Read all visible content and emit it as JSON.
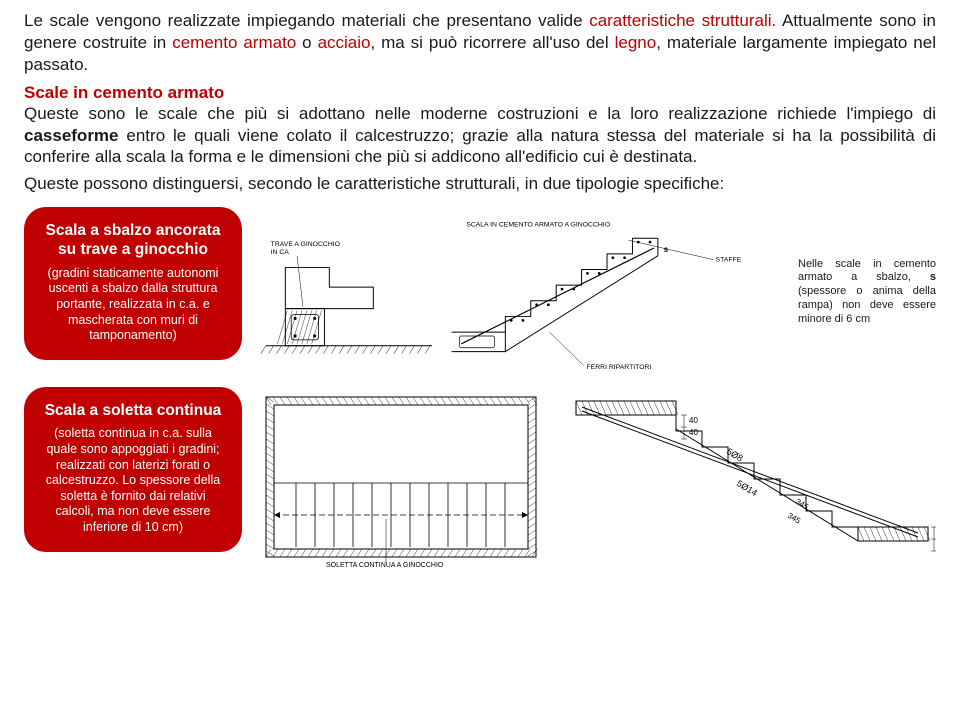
{
  "accent": "#c00000",
  "intro": [
    {
      "type": "plain",
      "text": "Le scale vengono realizzate impiegando materiali che presentano valide "
    },
    {
      "type": "emph",
      "text": "caratteristiche strutturali."
    },
    {
      "type": "plain",
      "text": " Attualmente sono in genere costruite in "
    },
    {
      "type": "emph",
      "text": "cemento armato"
    },
    {
      "type": "plain",
      "text": " o "
    },
    {
      "type": "emph",
      "text": "acciaio"
    },
    {
      "type": "plain",
      "text": ", ma si può ricorrere all'uso del "
    },
    {
      "type": "emph",
      "text": "legno"
    },
    {
      "type": "plain",
      "text": ", materiale largamente impiegato nel passato."
    }
  ],
  "section_heading": "Scale in cemento armato",
  "section_body": [
    {
      "type": "plain",
      "text": "Queste sono le scale che più si adottano nelle moderne costruzioni e la loro realizzazione richiede l'impiego di "
    },
    {
      "type": "bold",
      "text": "casseforme"
    },
    {
      "type": "plain",
      "text": " entro le quali viene colato il calcestruzzo; grazie alla natura stessa del materiale si ha la possibilità di conferire alla scala la forma e le dimensioni che più si addicono all'edificio cui è destinata."
    }
  ],
  "section_body2": "Queste possono distinguersi, secondo le caratteristiche strutturali, in due tipologie specifiche:",
  "card1": {
    "title": "Scala a sbalzo ancorata su trave a ginocchio",
    "desc": "(gradini staticamente autonomi uscenti a sbalzo dalla struttura portante, realizzata in c.a. e mascherata con muri di tamponamento)"
  },
  "card2": {
    "title": "Scala a soletta continua",
    "desc": "(soletta continua in c.a. sulla quale sono appoggiati i gradini; realizzati con laterizi forati o calcestruzzo. Lo spessore della soletta è fornito dai relativi calcoli, ma non deve essere inferiore di 10 cm)"
  },
  "side_caption": "Nelle scale in cemento armato a sbalzo, s (spessore o anima della rampa) non deve essere minore di 6 cm",
  "diagram1": {
    "labels": {
      "left": "TRAVE A GINOCCHIO IN CA",
      "center": "SCALA IN CEMENTO ARMATO A GINOCCHIO",
      "ferri": "FERRI RIPARTITORI",
      "staffe": "STAFFE"
    },
    "line_color": "#000000",
    "line_width": 1,
    "bg": "#ffffff",
    "font_size": 7
  },
  "diagram2": {
    "labels": {
      "center": "SOLETTA CONTINUA A GINOCCHIO"
    },
    "rebar_labels": [
      "5Ø8",
      "5Ø14"
    ],
    "dims_mm": [
      40,
      40,
      345,
      40,
      40
    ],
    "angle_dim": 345,
    "line_color": "#000000",
    "line_width": 1,
    "bg": "#ffffff",
    "font_size": 7
  }
}
